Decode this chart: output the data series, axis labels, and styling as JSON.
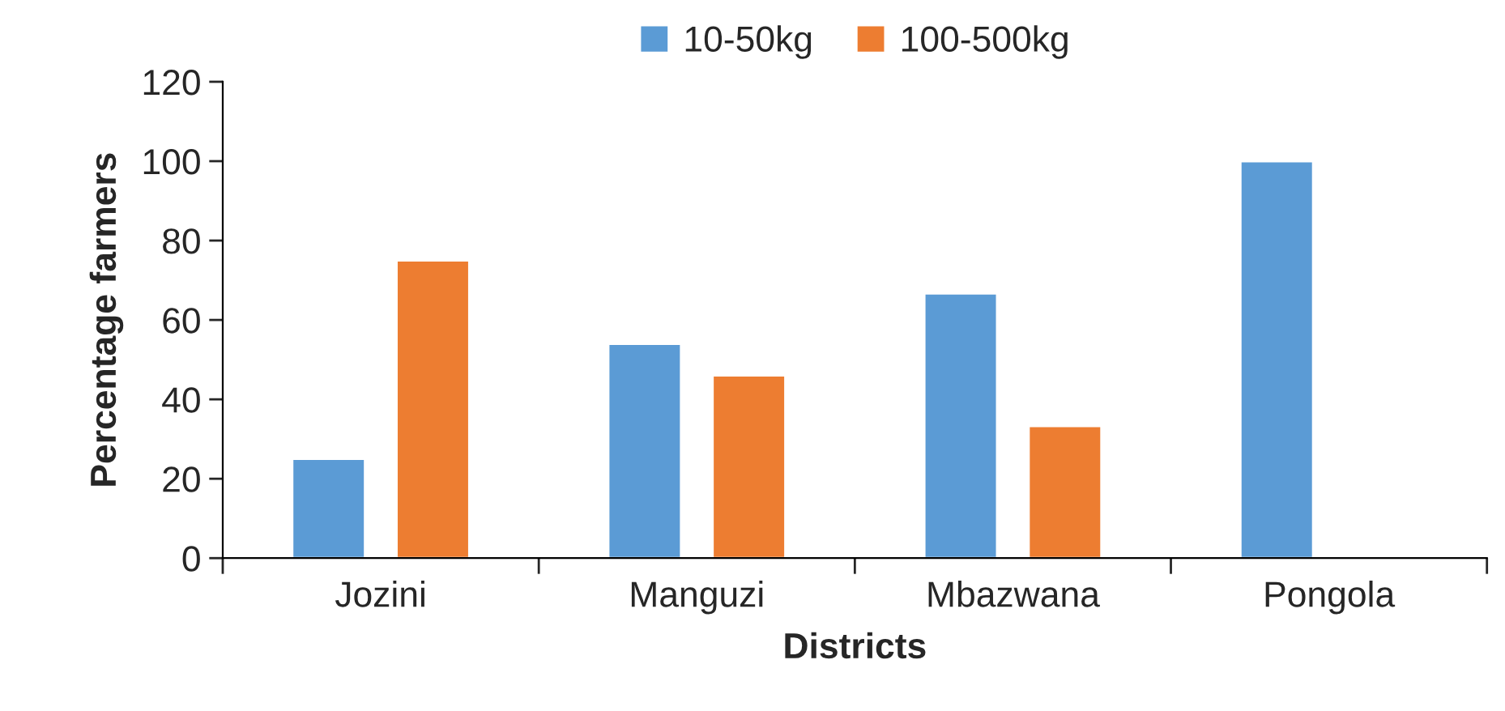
{
  "chart_data": {
    "type": "bar",
    "xlabel": "Districts",
    "ylabel": "Percentage farmers",
    "categories": [
      "Jozini",
      "Manguzi",
      "Mbazwana",
      "Pongola"
    ],
    "series": [
      {
        "name": "10-50kg",
        "color": "#5b9bd5",
        "values": [
          25,
          54,
          66.7,
          100
        ]
      },
      {
        "name": "100-500kg",
        "color": "#ed7d31",
        "values": [
          75,
          46,
          33.3,
          null
        ]
      }
    ],
    "ylim": [
      0,
      120
    ],
    "yticks": [
      0,
      20,
      40,
      60,
      80,
      100,
      120
    ],
    "grid": false,
    "legend": "top"
  }
}
